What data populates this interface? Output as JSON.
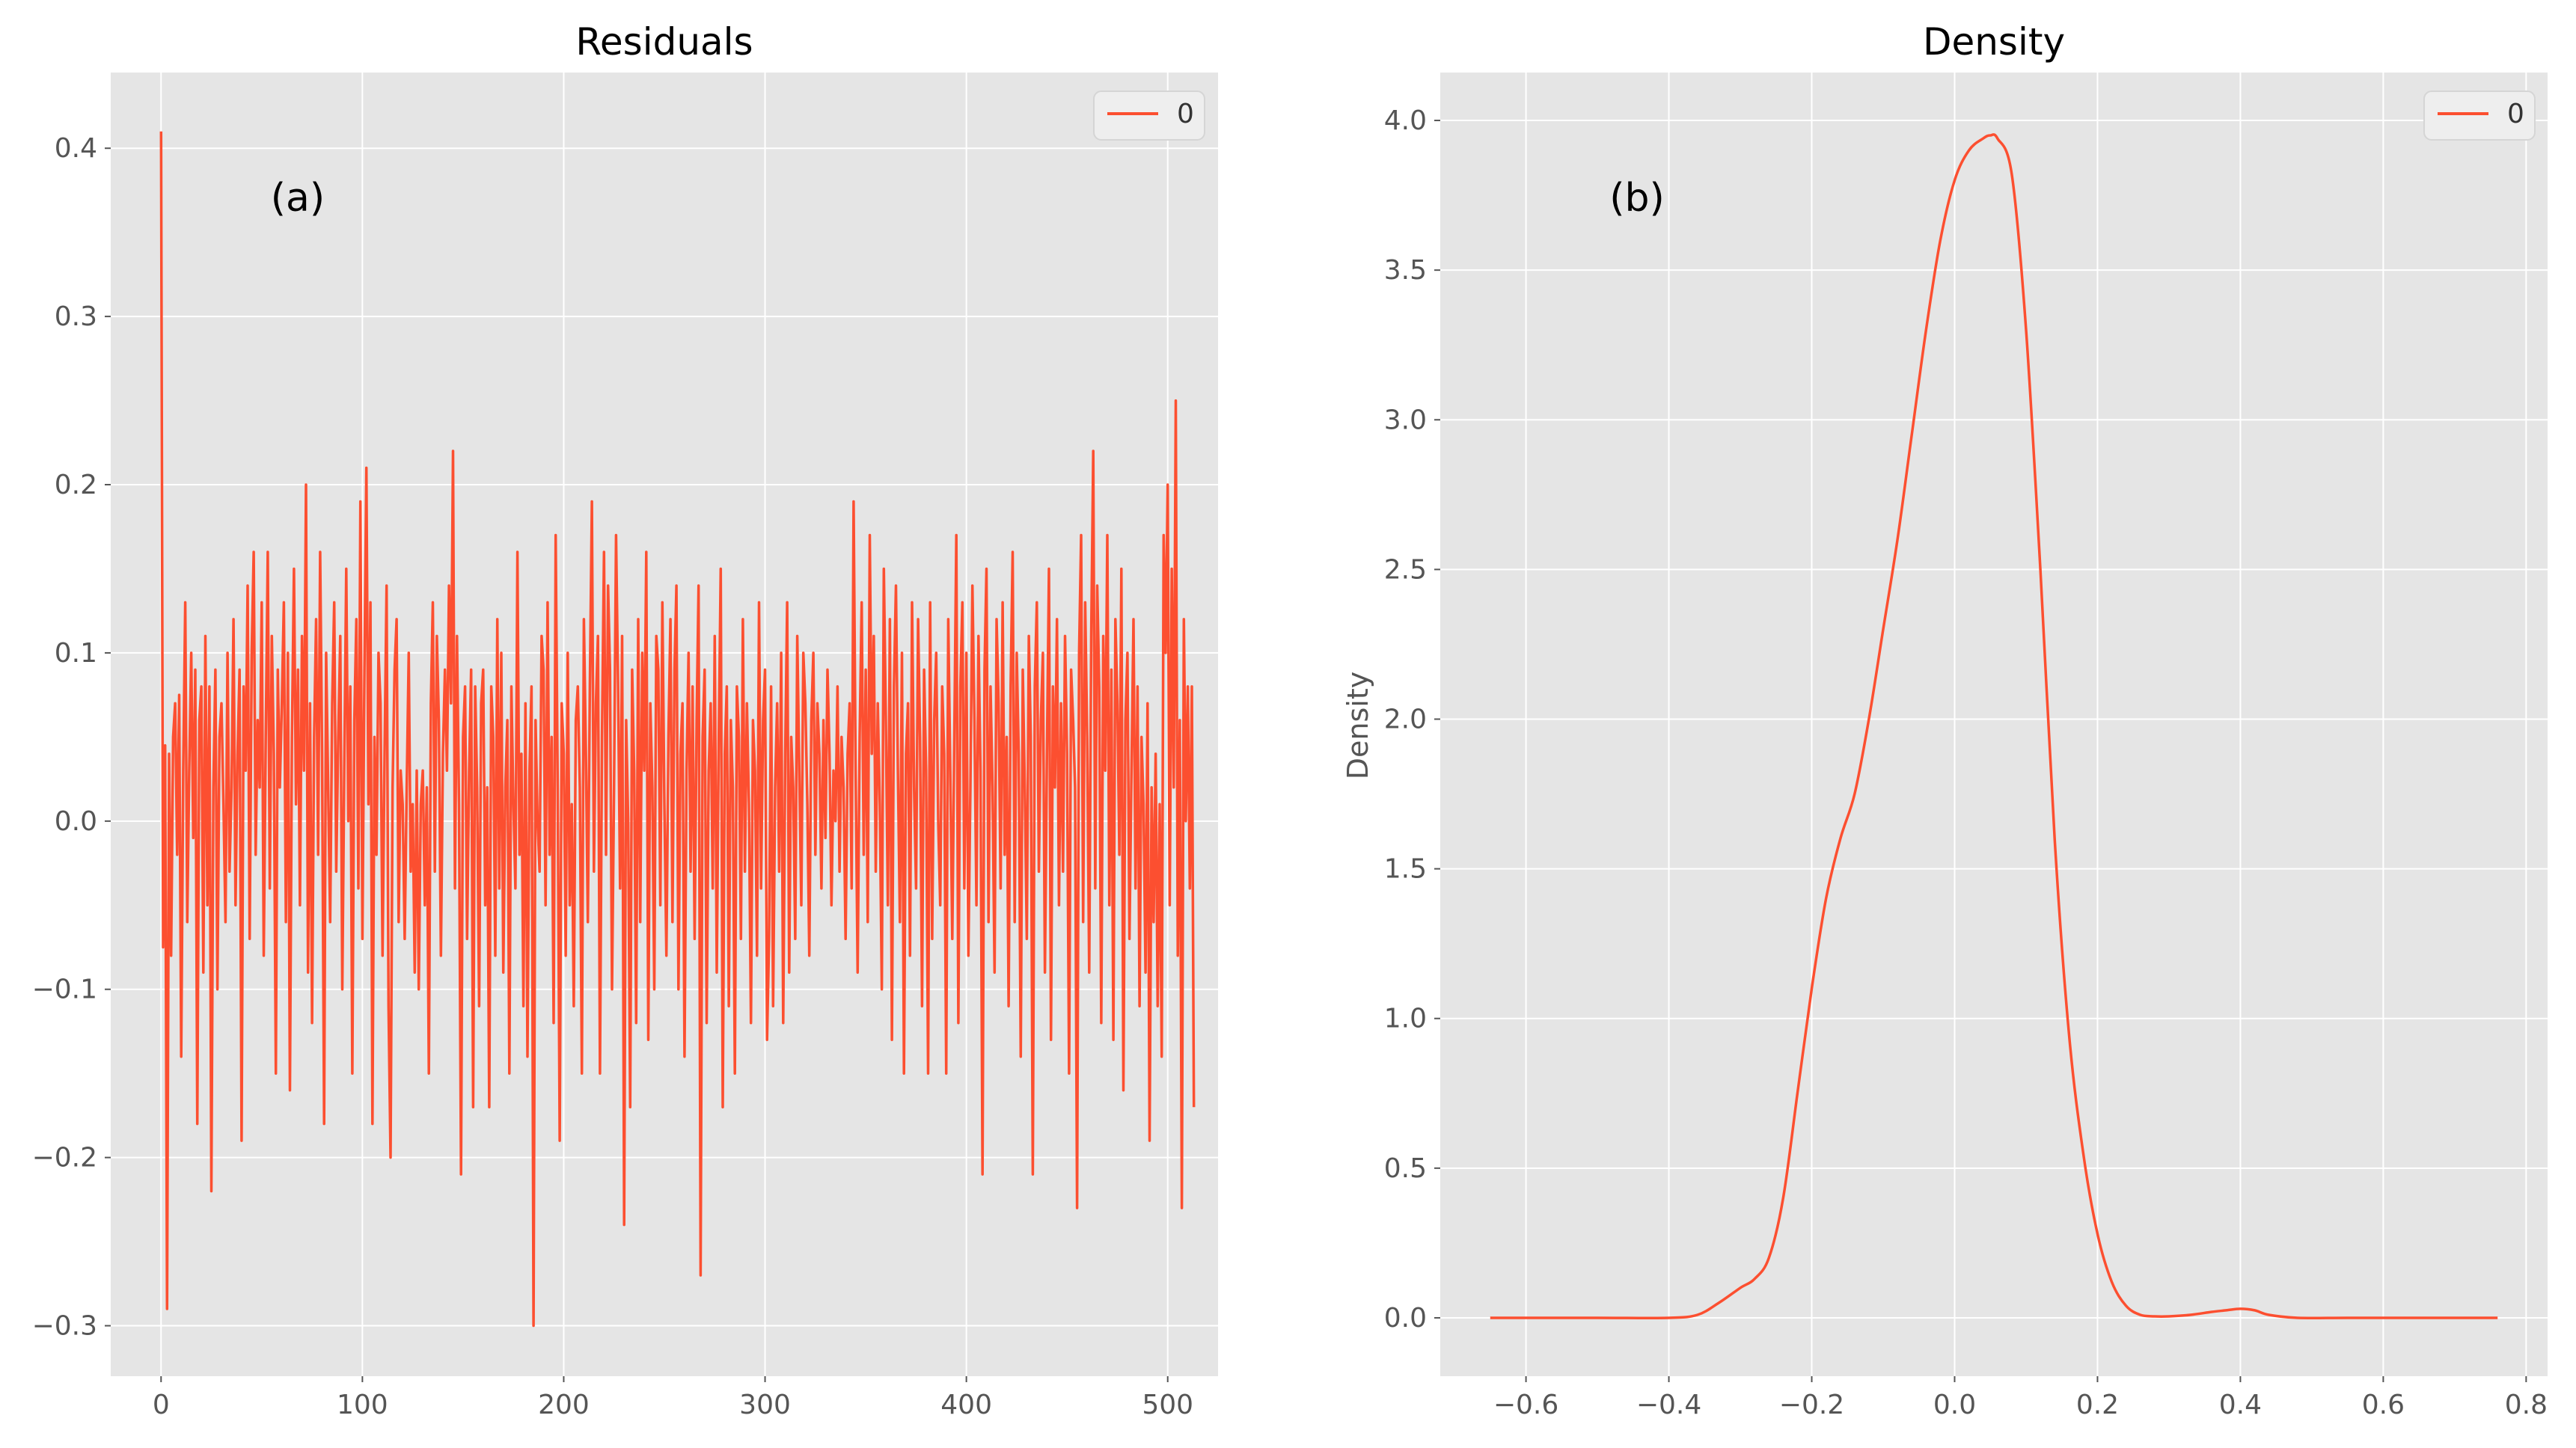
{
  "colors": {
    "background": "#e5e5e5",
    "grid": "#ffffff",
    "series": "#fc4f30",
    "tick_text": "#555555",
    "legend_bg": "#eeeeee"
  },
  "chart_data": [
    {
      "type": "line",
      "title": "Residuals",
      "annotation": "(a)",
      "xlabel": "",
      "ylabel": "",
      "xlim": [
        -25,
        525
      ],
      "ylim": [
        -0.33,
        0.445
      ],
      "xticks": [
        0,
        100,
        200,
        300,
        400,
        500
      ],
      "xtick_labels": [
        "0",
        "100",
        "200",
        "300",
        "400",
        "500"
      ],
      "yticks": [
        -0.3,
        -0.2,
        -0.1,
        0.0,
        0.1,
        0.2,
        0.3,
        0.4
      ],
      "ytick_labels": [
        "−0.3",
        "−0.2",
        "−0.1",
        "0.0",
        "0.1",
        "0.2",
        "0.3",
        "0.4"
      ],
      "grid": true,
      "legend": {
        "placement": "top-right",
        "entries": [
          "0"
        ]
      },
      "series": [
        {
          "name": "0",
          "x_start": 0,
          "x_step": 1,
          "values": [
            0.41,
            -0.075,
            0.045,
            -0.29,
            0.04,
            -0.08,
            0.05,
            0.07,
            -0.02,
            0.075,
            -0.14,
            0.03,
            0.13,
            -0.06,
            0.03,
            0.1,
            -0.01,
            0.09,
            -0.18,
            0.06,
            0.08,
            -0.09,
            0.11,
            -0.05,
            0.08,
            -0.22,
            0.02,
            0.09,
            -0.1,
            0.05,
            0.07,
            0.01,
            -0.06,
            0.1,
            -0.03,
            0.02,
            0.12,
            -0.05,
            0.04,
            0.09,
            -0.19,
            0.08,
            0.03,
            0.14,
            -0.07,
            0.1,
            0.16,
            -0.02,
            0.06,
            0.02,
            0.13,
            -0.08,
            0.05,
            0.16,
            -0.04,
            0.11,
            0.04,
            -0.15,
            0.09,
            0.02,
            0.07,
            0.13,
            -0.06,
            0.1,
            -0.16,
            0.05,
            0.15,
            0.01,
            0.09,
            -0.05,
            0.11,
            0.03,
            0.2,
            -0.09,
            0.07,
            -0.12,
            0.05,
            0.12,
            -0.02,
            0.16,
            0.04,
            -0.18,
            0.1,
            0.02,
            -0.06,
            0.07,
            0.13,
            -0.03,
            0.05,
            0.11,
            -0.1,
            0.03,
            0.15,
            0.0,
            0.08,
            -0.15,
            0.06,
            0.12,
            -0.04,
            0.19,
            -0.07,
            0.09,
            0.21,
            0.01,
            0.13,
            -0.18,
            0.05,
            -0.02,
            0.1,
            0.07,
            -0.08,
            0.04,
            0.14,
            -0.11,
            -0.2,
            0.02,
            0.09,
            0.12,
            -0.06,
            0.03,
            0.01,
            -0.07,
            0.02,
            0.1,
            -0.03,
            0.01,
            -0.09,
            0.03,
            -0.1,
            0.01,
            0.03,
            -0.05,
            0.02,
            -0.15,
            0.07,
            0.13,
            -0.03,
            0.11,
            0.06,
            -0.08,
            0.04,
            0.09,
            0.03,
            0.14,
            0.07,
            0.22,
            -0.04,
            0.11,
            0.01,
            -0.21,
            0.05,
            0.08,
            -0.07,
            0.03,
            0.09,
            -0.17,
            0.08,
            0.02,
            -0.11,
            0.07,
            0.09,
            -0.05,
            0.02,
            -0.17,
            0.08,
            0.05,
            -0.08,
            0.12,
            -0.04,
            0.1,
            -0.09,
            0.02,
            0.06,
            -0.15,
            0.08,
            0.01,
            -0.04,
            0.16,
            -0.02,
            0.04,
            -0.11,
            0.07,
            -0.14,
            0.03,
            0.08,
            -0.3,
            0.06,
            0.0,
            -0.03,
            0.11,
            0.09,
            -0.05,
            0.13,
            -0.02,
            0.05,
            -0.12,
            0.17,
            0.02,
            -0.19,
            0.07,
            0.04,
            -0.08,
            0.1,
            -0.05,
            0.01,
            -0.11,
            0.06,
            0.08,
            0.02,
            -0.15,
            0.12,
            0.04,
            -0.06,
            0.08,
            0.19,
            -0.03,
            0.07,
            0.11,
            -0.15,
            0.05,
            0.16,
            -0.02,
            0.14,
            0.09,
            -0.1,
            0.02,
            0.17,
            0.08,
            -0.04,
            0.11,
            -0.24,
            0.06,
            0.0,
            -0.17,
            0.09,
            0.03,
            -0.12,
            0.12,
            -0.06,
            0.1,
            0.03,
            0.16,
            -0.13,
            0.07,
            0.02,
            -0.1,
            0.11,
            0.09,
            -0.05,
            0.13,
            0.01,
            -0.08,
            0.05,
            0.12,
            -0.06,
            0.09,
            0.14,
            -0.1,
            0.04,
            0.07,
            -0.14,
            0.03,
            0.1,
            -0.03,
            0.08,
            -0.07,
            0.06,
            0.14,
            -0.27,
            0.05,
            0.09,
            -0.12,
            0.03,
            0.07,
            -0.04,
            0.11,
            -0.09,
            0.05,
            0.15,
            -0.17,
            0.04,
            0.08,
            -0.11,
            0.06,
            0.02,
            -0.15,
            0.08,
            0.05,
            -0.07,
            0.12,
            -0.03,
            0.07,
            0.01,
            -0.12,
            0.06,
            0.03,
            -0.08,
            0.13,
            -0.04,
            0.06,
            0.09,
            -0.13,
            -0.07,
            0.08,
            -0.11,
            0.02,
            0.07,
            -0.03,
            0.1,
            -0.12,
            0.04,
            0.13,
            -0.09,
            0.05,
            0.02,
            -0.07,
            0.11,
            0.03,
            -0.05,
            0.1,
            0.07,
            0.01,
            -0.08,
            0.06,
            0.1,
            -0.02,
            0.07,
            0.04,
            -0.04,
            0.06,
            -0.01,
            0.09,
            0.04,
            -0.05,
            0.03,
            0.0,
            0.08,
            -0.03,
            0.05,
            0.02,
            -0.07,
            0.04,
            0.07,
            -0.04,
            0.19,
            0.03,
            -0.09,
            0.05,
            0.13,
            -0.02,
            0.09,
            -0.06,
            0.17,
            0.04,
            0.11,
            -0.03,
            0.07,
            0.01,
            -0.1,
            0.15,
            0.06,
            -0.05,
            0.12,
            -0.13,
            0.08,
            0.14,
            0.03,
            -0.06,
            0.1,
            -0.15,
            0.04,
            0.07,
            -0.08,
            0.13,
            0.02,
            -0.04,
            0.12,
            0.05,
            -0.11,
            0.09,
            0.03,
            -0.15,
            0.13,
            -0.07,
            0.06,
            0.1,
            0.0,
            -0.05,
            0.08,
            0.04,
            -0.15,
            0.12,
            0.03,
            -0.07,
            0.05,
            0.17,
            -0.12,
            0.08,
            0.13,
            -0.04,
            0.1,
            -0.08,
            0.02,
            0.14,
            0.06,
            -0.05,
            0.11,
            0.03,
            -0.21,
            0.09,
            0.15,
            -0.06,
            0.08,
            0.02,
            -0.09,
            0.12,
            0.07,
            -0.04,
            0.13,
            -0.02,
            0.05,
            -0.11,
            0.08,
            0.16,
            -0.06,
            0.1,
            0.04,
            -0.14,
            0.09,
            0.02,
            -0.07,
            0.11,
            0.05,
            -0.21,
            0.08,
            0.13,
            -0.03,
            0.06,
            0.1,
            -0.09,
            0.04,
            0.15,
            -0.13,
            0.08,
            0.02,
            0.12,
            -0.05,
            0.07,
            -0.03,
            0.11,
            0.04,
            -0.15,
            0.09,
            0.06,
            0.02,
            -0.23,
            0.1,
            0.17,
            -0.06,
            0.13,
            0.05,
            -0.09,
            0.11,
            0.22,
            -0.04,
            0.14,
            0.08,
            -0.12,
            0.11,
            0.03,
            0.17,
            -0.05,
            0.09,
            -0.13,
            0.12,
            0.07,
            -0.02,
            0.15,
            -0.16,
            0.06,
            0.1,
            -0.07,
            0.03,
            0.12,
            -0.04,
            0.08,
            -0.11,
            0.05,
            0.01,
            -0.09,
            0.07,
            -0.19,
            0.02,
            -0.06,
            0.04,
            -0.11,
            0.01,
            -0.14,
            0.17,
            0.1,
            0.2,
            -0.05,
            0.15,
            0.02,
            0.25,
            -0.08,
            0.06,
            -0.23,
            0.12,
            0.0,
            0.08,
            -0.04,
            0.08,
            -0.17
          ]
        }
      ]
    },
    {
      "type": "line",
      "title": "Density",
      "annotation": "(b)",
      "xlabel": "",
      "ylabel": "Density",
      "xlim": [
        -0.72,
        0.83
      ],
      "ylim": [
        -0.195,
        4.16
      ],
      "xticks": [
        -0.6,
        -0.4,
        -0.2,
        0.0,
        0.2,
        0.4,
        0.6,
        0.8
      ],
      "xtick_labels": [
        "−0.6",
        "−0.4",
        "−0.2",
        "0.0",
        "0.2",
        "0.4",
        "0.6",
        "0.8"
      ],
      "yticks": [
        0.0,
        0.5,
        1.0,
        1.5,
        2.0,
        2.5,
        3.0,
        3.5,
        4.0
      ],
      "ytick_labels": [
        "0.0",
        "0.5",
        "1.0",
        "1.5",
        "2.0",
        "2.5",
        "3.0",
        "3.5",
        "4.0"
      ],
      "grid": true,
      "legend": {
        "placement": "top-right",
        "entries": [
          "0"
        ]
      },
      "series": [
        {
          "name": "0",
          "x": [
            -0.65,
            -0.5,
            -0.4,
            -0.36,
            -0.33,
            -0.3,
            -0.28,
            -0.26,
            -0.24,
            -0.22,
            -0.2,
            -0.18,
            -0.16,
            -0.14,
            -0.12,
            -0.1,
            -0.08,
            -0.06,
            -0.04,
            -0.02,
            0.0,
            0.02,
            0.04,
            0.05,
            0.06,
            0.08,
            0.1,
            0.12,
            0.14,
            0.16,
            0.18,
            0.2,
            0.22,
            0.24,
            0.26,
            0.28,
            0.3,
            0.33,
            0.36,
            0.38,
            0.4,
            0.42,
            0.44,
            0.48,
            0.55,
            0.65,
            0.76
          ],
          "y": [
            0.0,
            0.0,
            0.0,
            0.01,
            0.05,
            0.1,
            0.13,
            0.2,
            0.4,
            0.75,
            1.1,
            1.4,
            1.6,
            1.75,
            2.0,
            2.3,
            2.6,
            2.95,
            3.3,
            3.6,
            3.8,
            3.9,
            3.94,
            3.95,
            3.94,
            3.82,
            3.3,
            2.5,
            1.6,
            0.95,
            0.55,
            0.28,
            0.12,
            0.04,
            0.01,
            0.005,
            0.005,
            0.01,
            0.02,
            0.025,
            0.03,
            0.025,
            0.01,
            0.0,
            0.0,
            0.0,
            0.0
          ]
        }
      ]
    }
  ]
}
